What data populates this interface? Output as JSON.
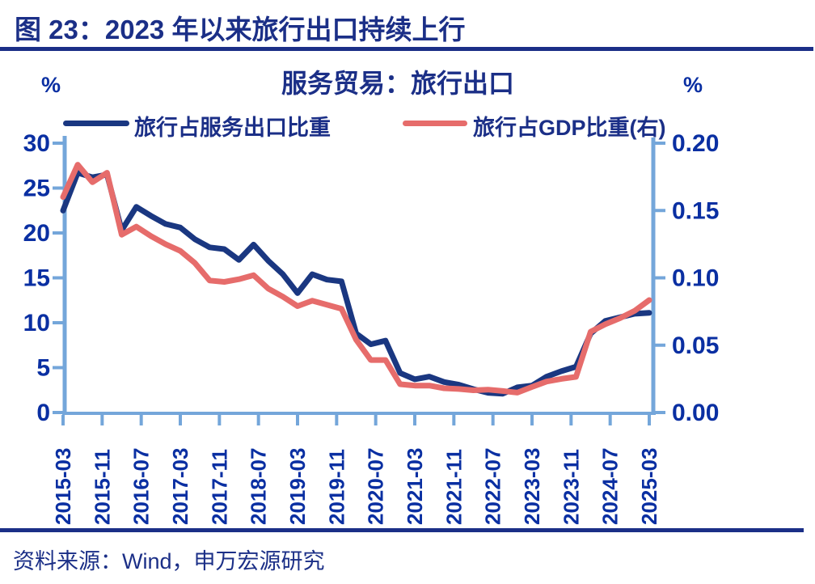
{
  "header": {
    "title": "图 23：2023 年以来旅行出口持续上行"
  },
  "footer": {
    "source": "资料来源：Wind，申万宏源研究"
  },
  "colors": {
    "heading_navy": "#1b2f87",
    "label_blue": "#0a2fa2",
    "axis_light_blue": "#74a6da",
    "series_blue": "#1a3781",
    "series_red": "#e66c6b"
  },
  "chart_data": {
    "type": "line",
    "title": "服务贸易：旅行出口",
    "legend_position": "top",
    "grid": false,
    "left_axis": {
      "unit": "%",
      "min": 0,
      "max": 30,
      "ticks": [
        0,
        5,
        10,
        15,
        20,
        25,
        30
      ]
    },
    "right_axis": {
      "unit": "%",
      "min": 0,
      "max": 0.2,
      "tick_labels": [
        "0.00",
        "0.05",
        "0.10",
        "0.15",
        "0.20"
      ]
    },
    "x_tick_labels": [
      "2015-03",
      "2015-11",
      "2016-07",
      "2017-03",
      "2017-11",
      "2018-07",
      "2019-03",
      "2019-11",
      "2020-07",
      "2021-03",
      "2021-11",
      "2022-07",
      "2023-03",
      "2023-11",
      "2024-07",
      "2025-03"
    ],
    "x": [
      "2015-03",
      "2015-06",
      "2015-09",
      "2015-12",
      "2016-03",
      "2016-06",
      "2016-09",
      "2016-12",
      "2017-03",
      "2017-06",
      "2017-09",
      "2017-12",
      "2018-03",
      "2018-06",
      "2018-09",
      "2018-12",
      "2019-03",
      "2019-06",
      "2019-09",
      "2019-12",
      "2020-03",
      "2020-06",
      "2020-09",
      "2020-12",
      "2021-03",
      "2021-06",
      "2021-09",
      "2021-12",
      "2022-03",
      "2022-06",
      "2022-09",
      "2022-12",
      "2023-03",
      "2023-06",
      "2023-09",
      "2023-12",
      "2024-03",
      "2024-06",
      "2024-09",
      "2024-12",
      "2025-03"
    ],
    "series": [
      {
        "name": "旅行占服务出口比重",
        "axis": "left",
        "color": "#1a3781",
        "values": [
          22.5,
          26.7,
          26.2,
          26.5,
          20.3,
          22.9,
          21.9,
          21.0,
          20.6,
          19.3,
          18.4,
          18.2,
          17.0,
          18.7,
          16.9,
          15.4,
          13.3,
          15.4,
          14.8,
          14.6,
          8.8,
          7.6,
          8.0,
          4.4,
          3.7,
          4.0,
          3.4,
          3.1,
          2.6,
          2.2,
          2.1,
          2.8,
          3.0,
          4.0,
          4.6,
          5.1,
          8.8,
          10.2,
          10.6,
          11.0,
          11.1
        ]
      },
      {
        "name": "旅行占GDP比重(右)",
        "axis": "right",
        "color": "#e66c6b",
        "values": [
          0.16,
          0.184,
          0.171,
          0.178,
          0.132,
          0.138,
          0.131,
          0.125,
          0.12,
          0.111,
          0.098,
          0.097,
          0.099,
          0.102,
          0.092,
          0.086,
          0.079,
          0.083,
          0.08,
          0.077,
          0.054,
          0.039,
          0.039,
          0.021,
          0.02,
          0.02,
          0.018,
          0.0175,
          0.0165,
          0.017,
          0.016,
          0.0148,
          0.019,
          0.023,
          0.025,
          0.0265,
          0.06,
          0.0655,
          0.07,
          0.0755,
          0.0835
        ]
      }
    ]
  }
}
